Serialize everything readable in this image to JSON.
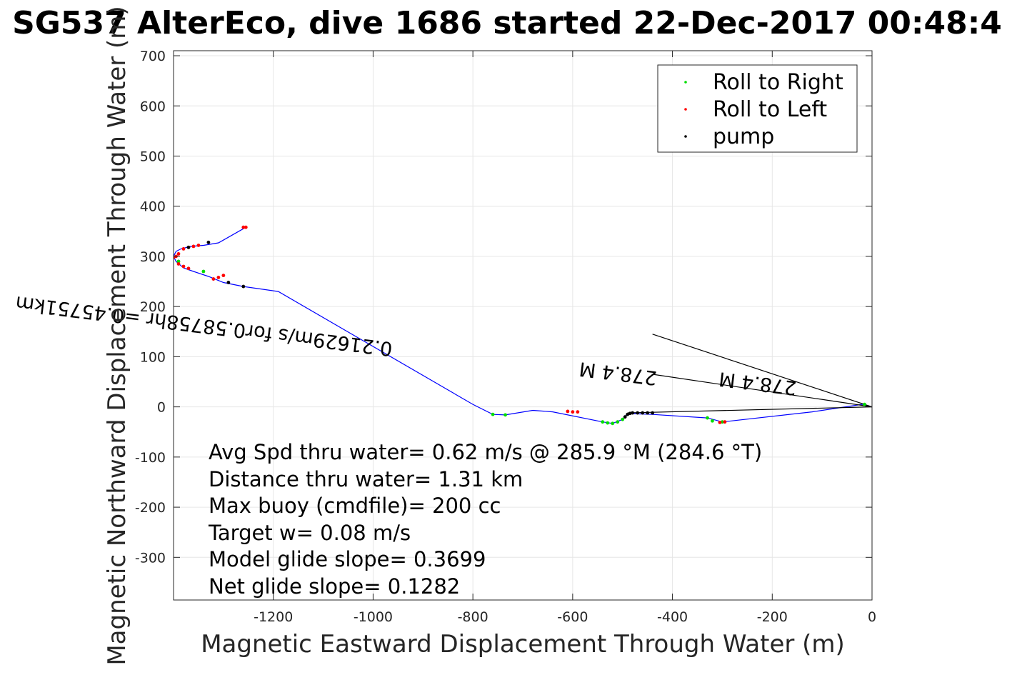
{
  "chart_data": {
    "type": "line",
    "title": "SG537 AlterEco, dive 1686 started 22-Dec-2017 00:48:4",
    "xlabel": "Magnetic Eastward Displacement Through Water (m)",
    "ylabel": "Magnetic Northward Displacement Through Water (m)",
    "xlim": [
      -1400,
      0
    ],
    "ylim": [
      -385,
      710
    ],
    "xticks": [
      -1200,
      -1000,
      -800,
      -600,
      -400,
      -200,
      0
    ],
    "yticks": [
      700,
      600,
      500,
      400,
      300,
      200,
      100,
      0,
      -100,
      -200,
      -300
    ],
    "grid": true,
    "legend_placement": "top-right",
    "legend": [
      {
        "label": "Roll to Right",
        "color": "#00dd00"
      },
      {
        "label": "Roll to Left",
        "color": "#ff0000"
      },
      {
        "label": "pump",
        "color": "#000000"
      }
    ],
    "track_color": "#0000ff",
    "track": {
      "x": [
        0,
        -20,
        -120,
        -300,
        -330,
        -440,
        -490,
        -500,
        -520,
        -540,
        -640,
        -680,
        -735,
        -760,
        -800,
        -1190,
        -1260,
        -1300,
        -1330,
        -1360,
        -1380,
        -1395,
        -1400,
        -1395,
        -1385,
        -1365,
        -1340,
        -1310,
        -1255
      ],
      "y": [
        0,
        5,
        -10,
        -30,
        -22,
        -15,
        -13,
        -25,
        -33,
        -30,
        -10,
        -7,
        -16,
        -15,
        5,
        230,
        240,
        248,
        260,
        270,
        277,
        290,
        300,
        310,
        315,
        320,
        322,
        327,
        358
      ]
    },
    "roll_right": {
      "x": [
        -15,
        -300,
        -320,
        -330,
        -500,
        -510,
        -520,
        -530,
        -540,
        -735,
        -760,
        -1340,
        -1390
      ],
      "y": [
        5,
        -30,
        -28,
        -22,
        -25,
        -30,
        -33,
        -32,
        -30,
        -16,
        -15,
        270,
        290
      ]
    },
    "roll_left": {
      "x": [
        -295,
        -305,
        -590,
        -600,
        -610,
        -1255,
        -1260,
        -1300,
        -1310,
        -1320,
        -1350,
        -1360,
        -1370,
        -1380,
        -1390,
        -1395,
        -1400,
        -1390,
        -1380,
        -1370
      ],
      "y": [
        -30,
        -31,
        -10,
        -10,
        -9,
        358,
        358,
        262,
        258,
        255,
        322,
        320,
        318,
        315,
        305,
        300,
        298,
        285,
        280,
        276
      ]
    },
    "pump": {
      "x": [
        -440,
        -450,
        -460,
        -470,
        -480,
        -485,
        -490,
        -495,
        -1260,
        -1290,
        -1330,
        -1370
      ],
      "y": [
        -12,
        -12,
        -12,
        -12,
        -12,
        -13,
        -15,
        -20,
        240,
        248,
        328,
        318
      ]
    },
    "vectors": [
      {
        "label": "0.21629m/s for0.58758hr =0.45751km",
        "from": [
          0,
          0
        ],
        "to": [
          -440,
          145
        ],
        "rotation_deg": 187
      },
      {
        "label": "278.4 M",
        "from": [
          0,
          0
        ],
        "to": [
          -490,
          -12
        ],
        "rotation_deg": 187
      },
      {
        "label": "278.4 M",
        "from": [
          0,
          0
        ],
        "to": [
          -440,
          65
        ],
        "rotation_deg": 187
      }
    ],
    "annotations": [
      "Avg Spd thru water=  0.62 m/s @ 285.9 °M (284.6 °T)",
      "Distance thru water=  1.31 km",
      "Max buoy (cmdfile)= 200 cc",
      "Target w= 0.08 m/s",
      "Model glide slope= 0.3699",
      "Net glide slope= 0.1282"
    ]
  }
}
